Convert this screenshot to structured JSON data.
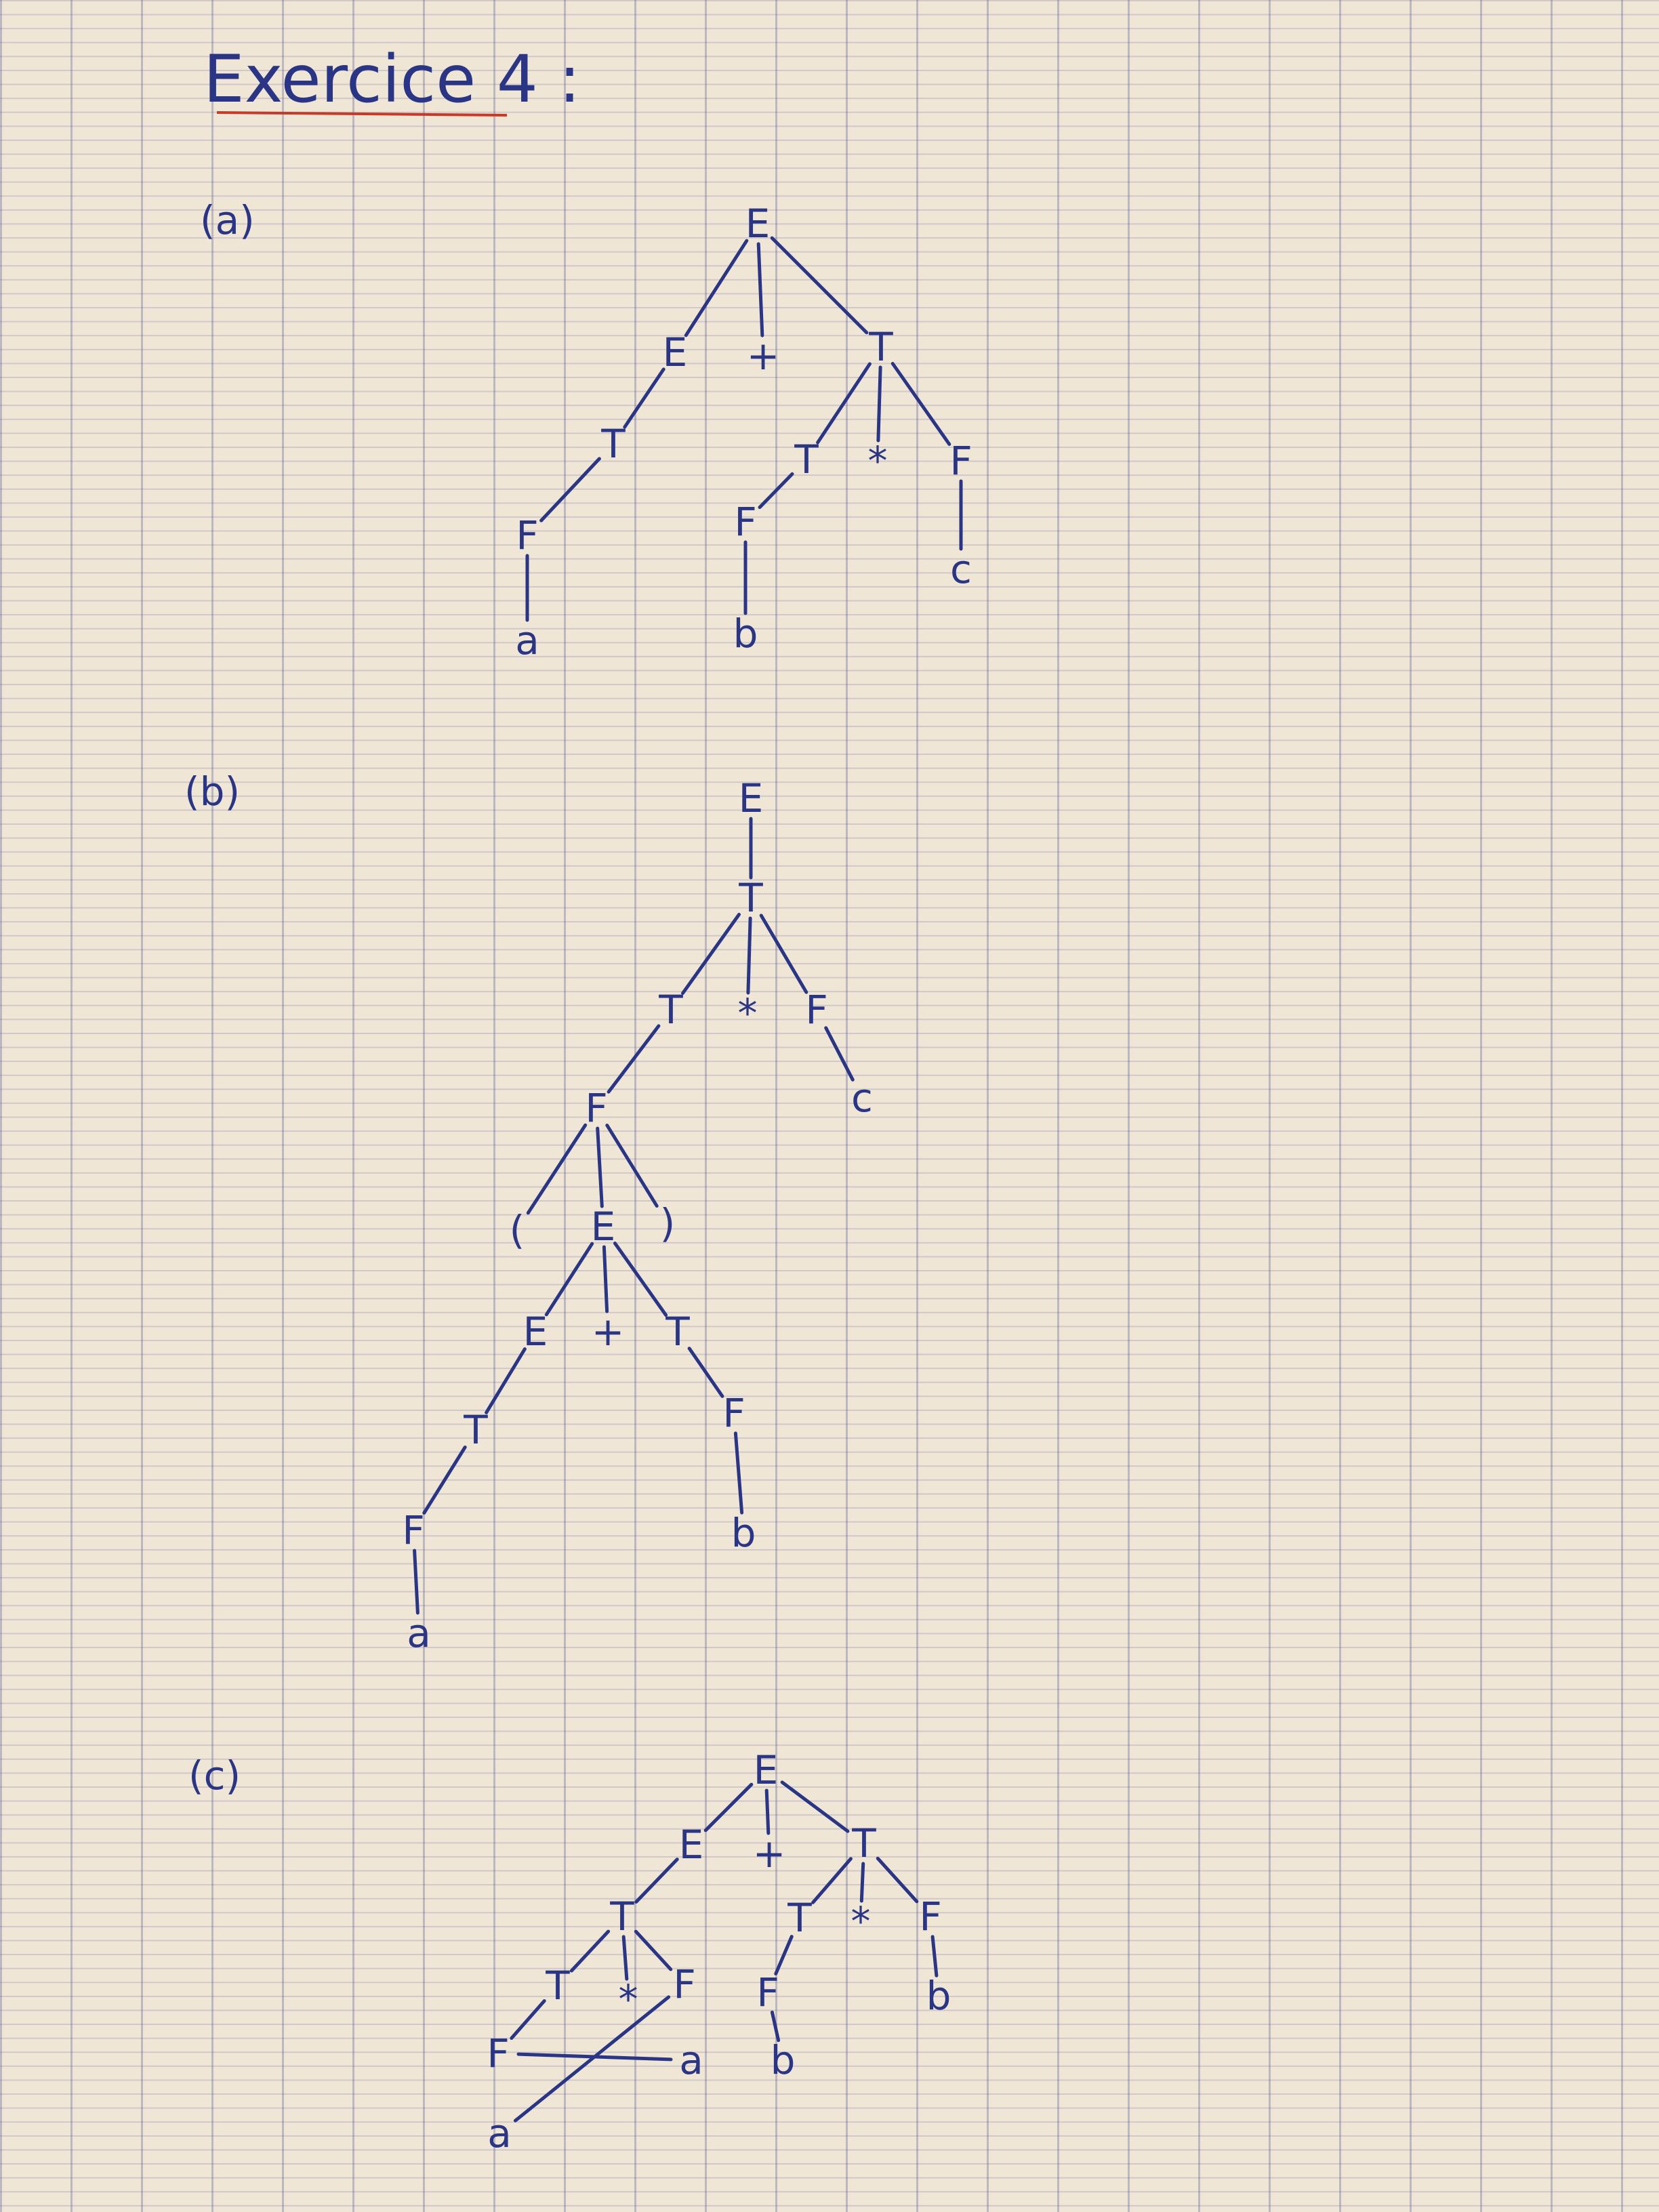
{
  "title": "Exercice 4 :",
  "trees": [
    {
      "label": "(a)",
      "nodes": [
        "E",
        "E",
        "+",
        "T",
        "T",
        "F",
        "a",
        "T",
        "*",
        "F",
        "F",
        "b",
        "c"
      ],
      "edges": [
        [
          0,
          1
        ],
        [
          0,
          2
        ],
        [
          0,
          3
        ],
        [
          1,
          4
        ],
        [
          4,
          5
        ],
        [
          5,
          6
        ],
        [
          3,
          7
        ],
        [
          3,
          8
        ],
        [
          3,
          9
        ],
        [
          7,
          10
        ],
        [
          10,
          11
        ],
        [
          9,
          12
        ]
      ]
    },
    {
      "label": "(b)",
      "nodes": [
        "E",
        "T",
        "T",
        "*",
        "F",
        "F",
        "c",
        "(",
        "E",
        ")",
        "E",
        "+",
        "T",
        "T",
        "F",
        "a",
        "F",
        "b"
      ],
      "edges": [
        [
          0,
          1
        ],
        [
          1,
          2
        ],
        [
          1,
          3
        ],
        [
          1,
          4
        ],
        [
          2,
          5
        ],
        [
          4,
          6
        ],
        [
          5,
          7
        ],
        [
          5,
          8
        ],
        [
          5,
          9
        ],
        [
          8,
          10
        ],
        [
          8,
          11
        ],
        [
          8,
          12
        ],
        [
          10,
          13
        ],
        [
          13,
          14
        ],
        [
          14,
          15
        ],
        [
          12,
          16
        ],
        [
          16,
          17
        ]
      ]
    },
    {
      "label": "(c)",
      "nodes": [
        "E",
        "E",
        "+",
        "T",
        "T",
        "T",
        "*",
        "F",
        "F",
        "a",
        "a",
        "T",
        "*",
        "F",
        "F",
        "b",
        "b"
      ],
      "edges": [
        [
          0,
          1
        ],
        [
          0,
          2
        ],
        [
          0,
          3
        ],
        [
          1,
          4
        ],
        [
          4,
          5
        ],
        [
          4,
          6
        ],
        [
          4,
          7
        ],
        [
          5,
          8
        ],
        [
          8,
          9
        ],
        [
          7,
          10
        ],
        [
          3,
          11
        ],
        [
          3,
          12
        ],
        [
          3,
          13
        ],
        [
          11,
          14
        ],
        [
          14,
          15
        ],
        [
          13,
          16
        ]
      ]
    }
  ]
}
